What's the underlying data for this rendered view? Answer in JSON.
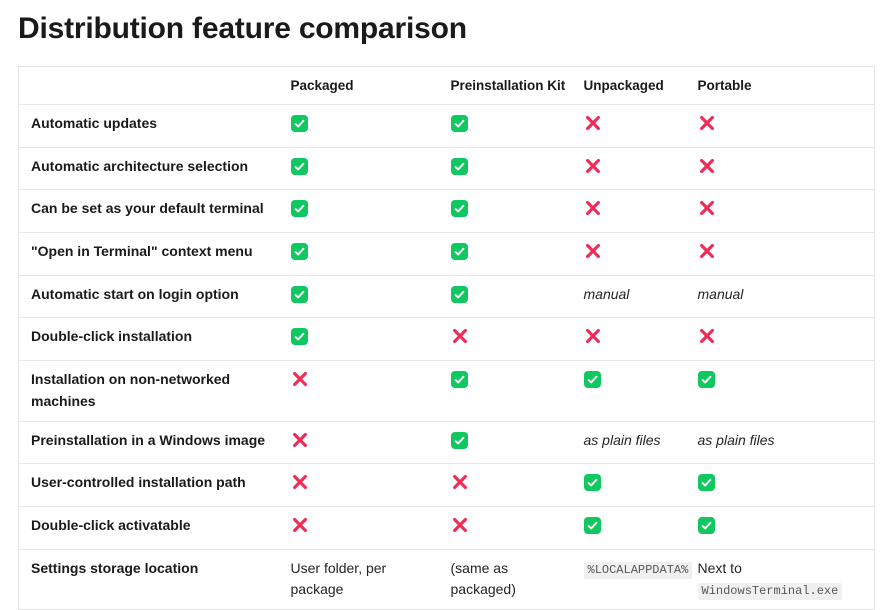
{
  "page": {
    "title": "Distribution feature comparison"
  },
  "colors": {
    "check_green": "#10c860",
    "cross_pink": "#ef2b56",
    "table_border": "#e3e3e3",
    "row_divider": "#e8e8e8",
    "code_background": "#f0f0f0",
    "heading_text": "#1a1a1a",
    "body_text": "#242424"
  },
  "icons": {
    "check": "check-icon",
    "cross": "cross-icon"
  },
  "table": {
    "columns": [
      "Packaged",
      "Preinstallation Kit",
      "Unpackaged",
      "Portable"
    ],
    "rows": [
      {
        "feature": "Automatic updates",
        "cells": [
          {
            "type": "check"
          },
          {
            "type": "check"
          },
          {
            "type": "cross"
          },
          {
            "type": "cross"
          }
        ]
      },
      {
        "feature": "Automatic architecture selection",
        "cells": [
          {
            "type": "check"
          },
          {
            "type": "check"
          },
          {
            "type": "cross"
          },
          {
            "type": "cross"
          }
        ]
      },
      {
        "feature": "Can be set as your default terminal",
        "cells": [
          {
            "type": "check"
          },
          {
            "type": "check"
          },
          {
            "type": "cross"
          },
          {
            "type": "cross"
          }
        ]
      },
      {
        "feature": "\"Open in Terminal\" context menu",
        "cells": [
          {
            "type": "check"
          },
          {
            "type": "check"
          },
          {
            "type": "cross"
          },
          {
            "type": "cross"
          }
        ]
      },
      {
        "feature": "Automatic start on login option",
        "cells": [
          {
            "type": "check"
          },
          {
            "type": "check"
          },
          {
            "type": "italic",
            "text": "manual"
          },
          {
            "type": "italic",
            "text": "manual"
          }
        ]
      },
      {
        "feature": "Double-click installation",
        "cells": [
          {
            "type": "check"
          },
          {
            "type": "cross"
          },
          {
            "type": "cross"
          },
          {
            "type": "cross"
          }
        ]
      },
      {
        "feature": "Installation on non-networked machines",
        "cells": [
          {
            "type": "cross"
          },
          {
            "type": "check"
          },
          {
            "type": "check"
          },
          {
            "type": "check"
          }
        ]
      },
      {
        "feature": "Preinstallation in a Windows image",
        "cells": [
          {
            "type": "cross"
          },
          {
            "type": "check"
          },
          {
            "type": "italic",
            "text": "as plain files"
          },
          {
            "type": "italic",
            "text": "as plain files"
          }
        ]
      },
      {
        "feature": "User-controlled installation path",
        "cells": [
          {
            "type": "cross"
          },
          {
            "type": "cross"
          },
          {
            "type": "check"
          },
          {
            "type": "check"
          }
        ]
      },
      {
        "feature": "Double-click activatable",
        "cells": [
          {
            "type": "cross"
          },
          {
            "type": "cross"
          },
          {
            "type": "check"
          },
          {
            "type": "check"
          }
        ]
      },
      {
        "feature": "Settings storage location",
        "cells": [
          {
            "type": "text",
            "text": "User folder, per package"
          },
          {
            "type": "text",
            "text": "(same as packaged)"
          },
          {
            "type": "code",
            "text": "%LOCALAPPDATA%"
          },
          {
            "type": "text_code",
            "text": "Next to",
            "code": "WindowsTerminal.exe"
          }
        ]
      }
    ]
  }
}
